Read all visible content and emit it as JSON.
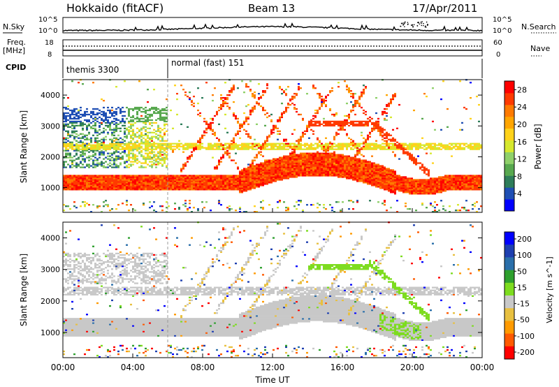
{
  "header": {
    "station": "Hokkaido (fitACF)",
    "beam": "Beam 13",
    "date": "17/Apr/2011"
  },
  "side_labels": {
    "nsky": "N.Sky",
    "freq_line1": "Freq.",
    "freq_line2": "[MHz]",
    "cpid": "CPID",
    "nsearch": "N.Search",
    "nave": "Nave"
  },
  "cpid_modes": [
    {
      "label": "themis 3300",
      "start_hour": 0,
      "end_hour": 6
    },
    {
      "label": "normal (fast) 151",
      "start_hour": 6,
      "end_hour": 24
    }
  ],
  "colors": {
    "background_scatter": "#c8c8c8",
    "power_scale": [
      "#0000ff",
      "#1f4fb4",
      "#2e7d5a",
      "#58a84f",
      "#8fd06a",
      "#d6e82e",
      "#ffd21a",
      "#ffa500",
      "#ff7a00",
      "#ff3a00",
      "#ff0000"
    ],
    "velocity_scale": [
      "#ff0000",
      "#ff5a00",
      "#ff9a00",
      "#e8c040",
      "#c8c8c8",
      "#7ddc1f",
      "#2ea02e",
      "#2a6faa",
      "#1e3fb0",
      "#0000ff"
    ]
  },
  "chart_data": [
    {
      "type": "line",
      "name": "N.Sky / N.Search",
      "y_tick_labels_left": [
        "10^5",
        "10^0"
      ],
      "y_tick_labels_right": [
        "10^5",
        "10^0"
      ],
      "x_range_hours": [
        0,
        24
      ]
    },
    {
      "type": "line",
      "name": "Freq / Nave",
      "y_tick_labels_left": [
        "18",
        "8"
      ],
      "y_tick_labels_right": [
        "60",
        "0"
      ],
      "x_range_hours": [
        0,
        24
      ]
    },
    {
      "type": "heatmap",
      "name": "Power",
      "xlabel": "",
      "ylabel": "Slant Range [km]",
      "ylim": [
        200,
        4500
      ],
      "y_ticks": [
        1000,
        2000,
        3000,
        4000
      ],
      "colorbar_label": "Power [dB]",
      "colorbar_ticks": [
        4,
        8,
        12,
        16,
        20,
        24,
        28
      ],
      "colorbar_range": [
        0,
        30
      ]
    },
    {
      "type": "heatmap",
      "name": "Velocity",
      "xlabel": "Time UT",
      "ylabel": "Slant Range [km]",
      "ylim": [
        200,
        4500
      ],
      "y_ticks": [
        1000,
        2000,
        3000,
        4000
      ],
      "x_tick_labels": [
        "00:00",
        "04:00",
        "08:00",
        "12:00",
        "16:00",
        "20:00",
        "00:00"
      ],
      "x_range_hours": [
        0,
        24
      ],
      "colorbar_label": "Velocity [m s^-1]",
      "colorbar_ticks": [
        200,
        100,
        50,
        15,
        -15,
        -50,
        -100,
        -200
      ]
    }
  ]
}
